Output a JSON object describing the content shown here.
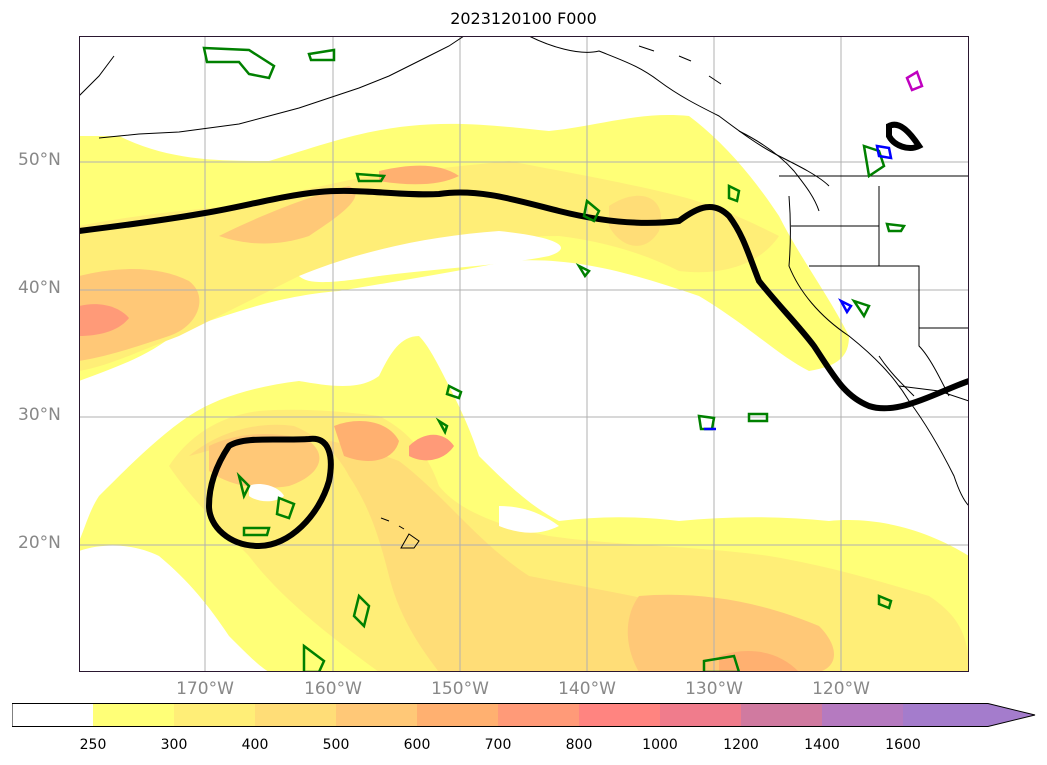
{
  "title": "2023120100 F000",
  "lat_labels": [
    "50°N",
    "40°N",
    "30°N",
    "20°N"
  ],
  "lon_labels": [
    "170°W",
    "160°W",
    "150°W",
    "140°W",
    "130°W",
    "120°W"
  ],
  "colorbar": {
    "levels": [
      "250",
      "300",
      "400",
      "500",
      "600",
      "700",
      "800",
      "1000",
      "1200",
      "1400",
      "1600"
    ],
    "colors": [
      "#ffffff",
      "#ffff77",
      "#ffee77",
      "#ffdd77",
      "#ffc877",
      "#ffb070",
      "#ff9a78",
      "#ff8480",
      "#f07c8c",
      "#d07aa0",
      "#b57ac0",
      "#a47ccc"
    ]
  },
  "contours": {
    "heavy_line_color": "#000000",
    "green_color": "#008000",
    "blue_color": "#0000ff",
    "magenta_color": "#c000c0"
  }
}
